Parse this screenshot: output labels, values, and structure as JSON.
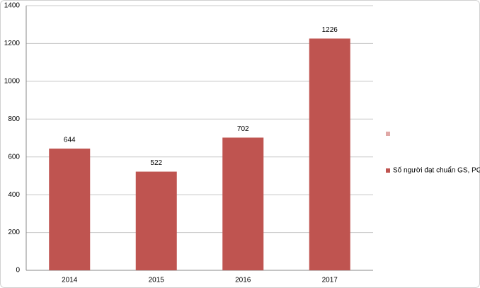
{
  "chart_data": {
    "type": "bar",
    "categories": [
      "2014",
      "2015",
      "2016",
      "2017"
    ],
    "series": [
      {
        "name": "Số người đạt chuẩn GS, PGS",
        "color": "#bf5450",
        "values": [
          644,
          522,
          702,
          1226
        ]
      }
    ],
    "ylim": [
      0,
      1400
    ],
    "yticks": [
      0,
      200,
      400,
      600,
      800,
      1000,
      1200,
      1400
    ],
    "grid": true
  }
}
